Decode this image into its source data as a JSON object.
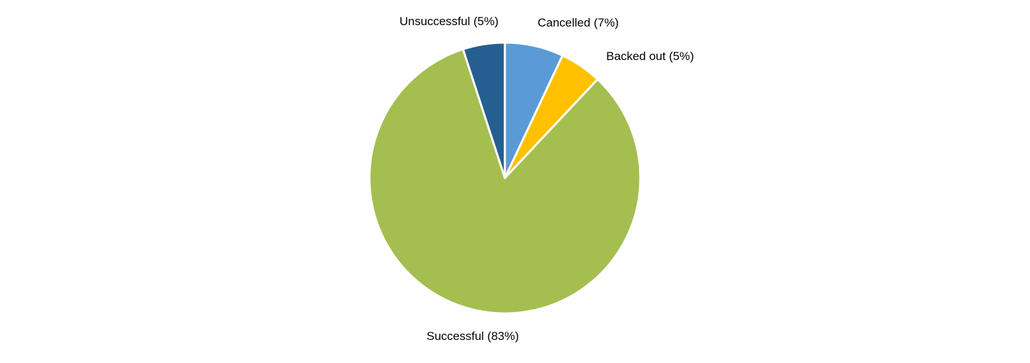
{
  "chart_data": {
    "type": "pie",
    "title": "",
    "slices": [
      {
        "label": "Cancelled",
        "value": 7,
        "display": "Cancelled (7%)",
        "color": "#5B9BD5"
      },
      {
        "label": "Backed out",
        "value": 5,
        "display": "Backed out (5%)",
        "color": "#FFC000"
      },
      {
        "label": "Successful",
        "value": 83,
        "display": "Successful (83%)",
        "color": "#A5BE50"
      },
      {
        "label": "Unsuccessful",
        "value": 5,
        "display": "Unsuccessful (5%)",
        "color": "#255E91"
      }
    ],
    "start_angle": "12 o'clock",
    "direction": "clockwise",
    "slice_border_color": "#FFFFFF",
    "legend": "none",
    "data_labels": "outside"
  }
}
